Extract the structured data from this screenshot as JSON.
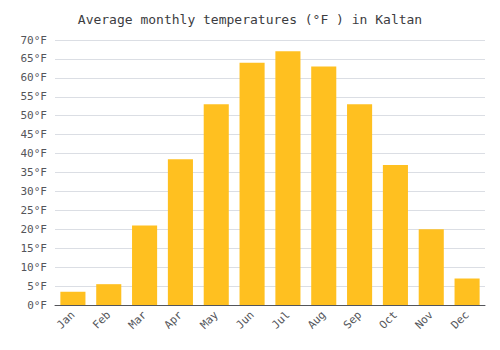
{
  "chart_data": {
    "type": "bar",
    "title": "Average monthly temperatures (°F ) in Kaltan",
    "categories": [
      "Jan",
      "Feb",
      "Mar",
      "Apr",
      "May",
      "Jun",
      "Jul",
      "Aug",
      "Sep",
      "Oct",
      "Nov",
      "Dec"
    ],
    "values": [
      3.5,
      5.5,
      21,
      38.5,
      53,
      64,
      67,
      63,
      53,
      37,
      20,
      7
    ],
    "color": "#FFC020",
    "ylim": [
      0,
      70
    ],
    "yticks": [
      {
        "value": 0,
        "label": "0°F"
      },
      {
        "value": 5,
        "label": "5°F"
      },
      {
        "value": 10,
        "label": "10°F"
      },
      {
        "value": 15,
        "label": "15°F"
      },
      {
        "value": 20,
        "label": "20°F"
      },
      {
        "value": 25,
        "label": "25°F"
      },
      {
        "value": 30,
        "label": "30°F"
      },
      {
        "value": 35,
        "label": "35°F"
      },
      {
        "value": 40,
        "label": "40°F"
      },
      {
        "value": 45,
        "label": "45°F"
      },
      {
        "value": 50,
        "label": "50°F"
      },
      {
        "value": 55,
        "label": "55°F"
      },
      {
        "value": 60,
        "label": "60°F"
      },
      {
        "value": 65,
        "label": "65°F"
      },
      {
        "value": 70,
        "label": "70°F"
      }
    ],
    "grid": true
  }
}
